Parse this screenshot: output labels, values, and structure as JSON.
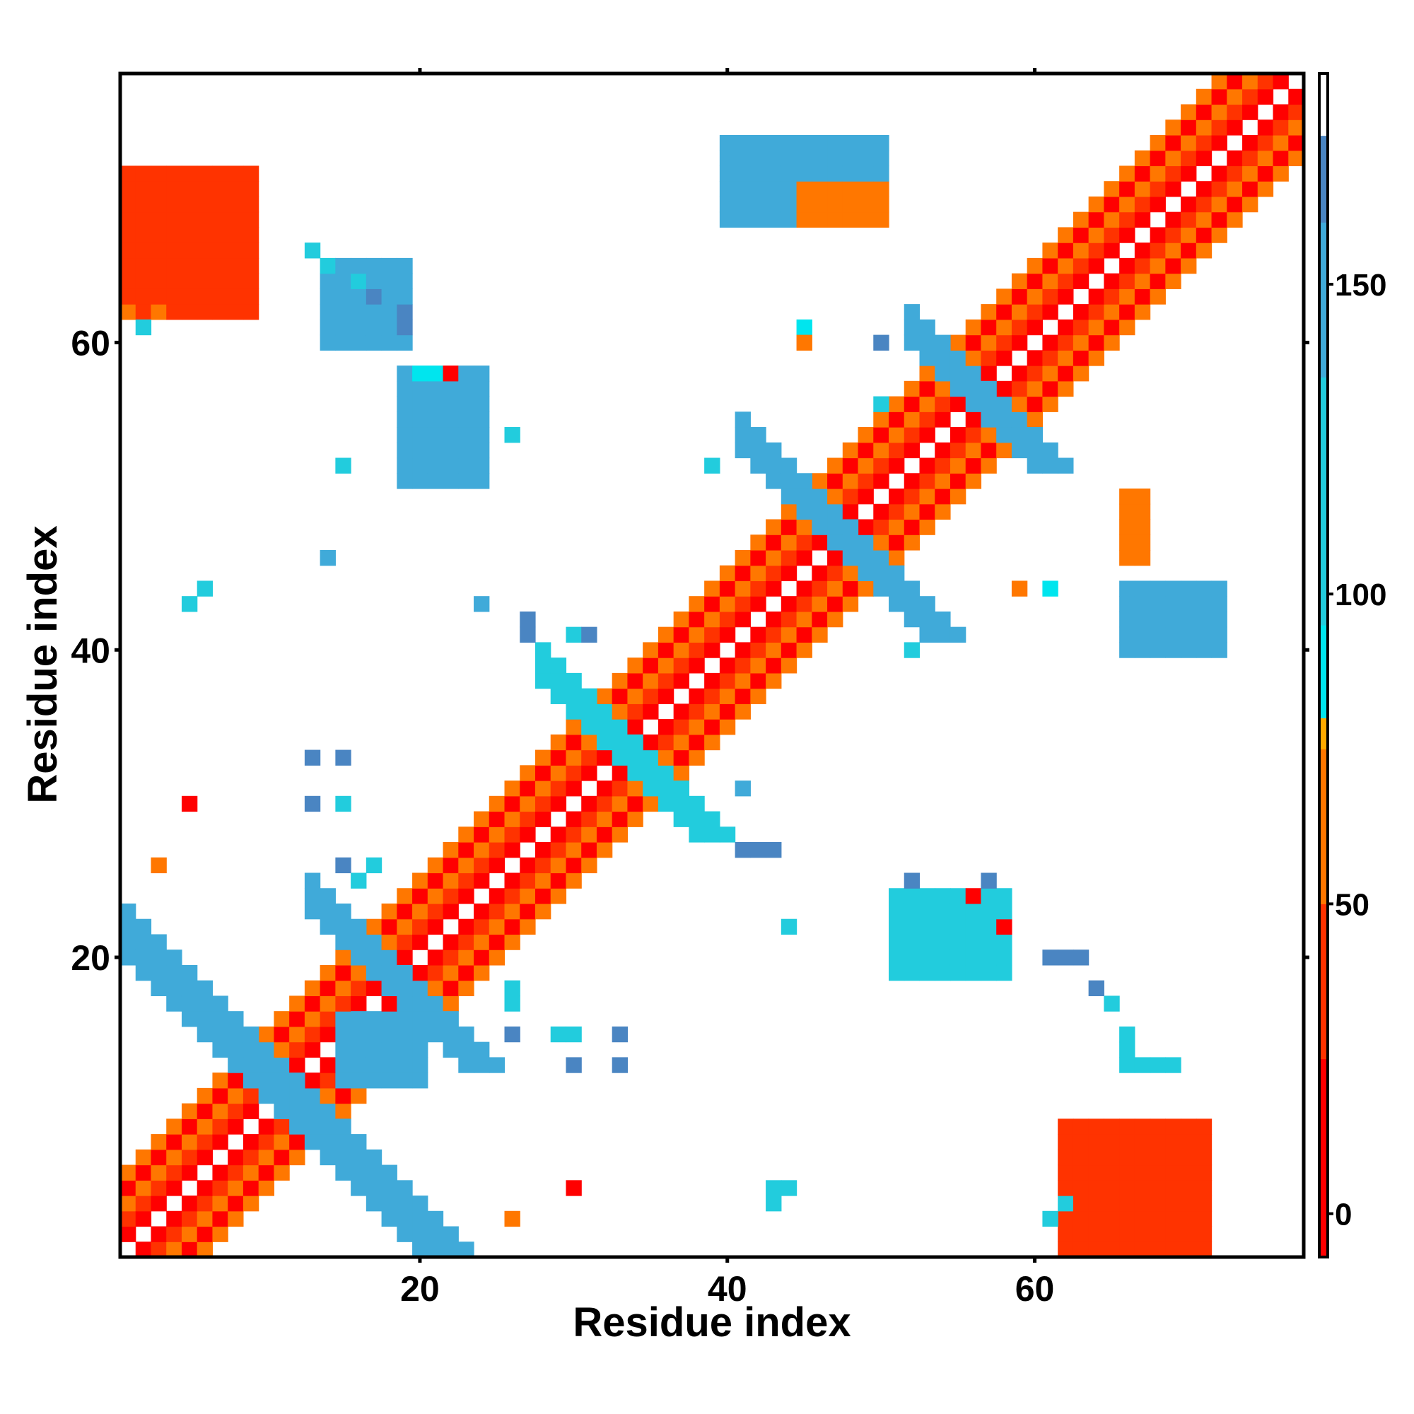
{
  "chart_data": {
    "type": "heatmap",
    "title": "",
    "xlabel": "Residue index",
    "ylabel": "Residue index",
    "xlim": [
      0.5,
      77.5
    ],
    "ylim": [
      0.5,
      77.5
    ],
    "x_ticks": [
      20,
      40,
      60
    ],
    "y_ticks": [
      20,
      40,
      60
    ],
    "colorbar": {
      "range": [
        -7,
        184
      ],
      "ticks": [
        0,
        50,
        100,
        150
      ],
      "stops": [
        {
          "from": -7,
          "to": 25,
          "color": "#ff0000"
        },
        {
          "from": 25,
          "to": 50,
          "color": "#ff3300"
        },
        {
          "from": 50,
          "to": 75,
          "color": "#ff7700"
        },
        {
          "from": 75,
          "to": 80,
          "color": "#ffaa00"
        },
        {
          "from": 80,
          "to": 95,
          "color": "#00e5ee"
        },
        {
          "from": 95,
          "to": 135,
          "color": "#22ccdd"
        },
        {
          "from": 135,
          "to": 160,
          "color": "#40aad9"
        },
        {
          "from": 160,
          "to": 174,
          "color": "#4a85c2"
        },
        {
          "from": 174,
          "to": 184,
          "color": "#ffffff"
        }
      ]
    },
    "diagonal_bands": [
      {
        "range": [
          1,
          77
        ],
        "offsets": [
          [
            1,
            8
          ],
          [
            2,
            30
          ],
          [
            3,
            60
          ],
          [
            4,
            20
          ],
          [
            5,
            55
          ]
        ]
      }
    ],
    "anti_diagonal_strips": [
      {
        "i0": 1,
        "i1": 15,
        "sum": 21,
        "width": 4,
        "value": 150
      },
      {
        "i0": 13,
        "i1": 20,
        "sum": 36,
        "width": 3,
        "value": 140
      },
      {
        "i0": 28,
        "i1": 38,
        "sum": 66,
        "width": 3,
        "value": 130
      },
      {
        "i0": 41,
        "i1": 53,
        "sum": 94,
        "width": 3,
        "value": 135
      },
      {
        "i0": 52,
        "i1": 58,
        "sum": 112,
        "width": 3,
        "value": 145
      }
    ],
    "blocks": [
      {
        "i0": 1,
        "i1": 9,
        "j0": 62,
        "j1": 71,
        "value": 45
      },
      {
        "i0": 62,
        "i1": 71,
        "j0": 1,
        "j1": 9,
        "value": 45
      },
      {
        "i0": 40,
        "i1": 50,
        "j0": 68,
        "j1": 73,
        "value": 140
      },
      {
        "i0": 45,
        "i1": 50,
        "j0": 68,
        "j1": 70,
        "value": 60
      },
      {
        "i0": 19,
        "i1": 24,
        "j0": 51,
        "j1": 58,
        "value": 150
      },
      {
        "i0": 51,
        "i1": 58,
        "j0": 19,
        "j1": 24,
        "value": 115
      },
      {
        "i0": 66,
        "i1": 72,
        "j0": 40,
        "j1": 44,
        "value": 150
      },
      {
        "i0": 66,
        "i1": 67,
        "j0": 46,
        "j1": 50,
        "value": 60
      },
      {
        "i0": 15,
        "i1": 20,
        "j0": 12,
        "j1": 16,
        "value": 155
      },
      {
        "i0": 14,
        "i1": 19,
        "j0": 60,
        "j1": 65,
        "value": 150
      }
    ],
    "cells": [
      [
        1,
        62,
        60
      ],
      [
        2,
        61,
        110
      ],
      [
        3,
        62,
        60
      ],
      [
        13,
        66,
        115
      ],
      [
        14,
        65,
        120
      ],
      [
        16,
        64,
        115
      ],
      [
        17,
        63,
        160
      ],
      [
        19,
        62,
        160
      ],
      [
        19,
        61,
        160
      ],
      [
        20,
        58,
        90
      ],
      [
        21,
        58,
        90
      ],
      [
        22,
        58,
        10
      ],
      [
        26,
        54,
        115
      ],
      [
        15,
        52,
        130
      ],
      [
        14,
        46,
        135
      ],
      [
        24,
        43,
        135
      ],
      [
        27,
        42,
        160
      ],
      [
        27,
        41,
        160
      ],
      [
        30,
        41,
        115
      ],
      [
        31,
        41,
        160
      ],
      [
        39,
        52,
        115
      ],
      [
        45,
        61,
        90
      ],
      [
        45,
        60,
        55
      ],
      [
        50,
        60,
        160
      ],
      [
        50,
        56,
        115
      ],
      [
        52,
        40,
        120
      ],
      [
        59,
        44,
        60
      ],
      [
        61,
        44,
        90
      ],
      [
        5,
        43,
        115
      ],
      [
        6,
        44,
        115
      ],
      [
        5,
        30,
        10
      ],
      [
        3,
        26,
        60
      ],
      [
        13,
        33,
        160
      ],
      [
        15,
        33,
        160
      ],
      [
        13,
        30,
        160
      ],
      [
        15,
        30,
        120
      ],
      [
        15,
        26,
        160
      ],
      [
        17,
        26,
        120
      ],
      [
        16,
        25,
        120
      ],
      [
        41,
        31,
        135
      ],
      [
        41,
        27,
        160
      ],
      [
        42,
        27,
        160
      ],
      [
        43,
        27,
        160
      ],
      [
        44,
        22,
        120
      ],
      [
        52,
        25,
        160
      ],
      [
        57,
        25,
        160
      ],
      [
        56,
        24,
        5
      ],
      [
        58,
        22,
        10
      ],
      [
        61,
        20,
        160
      ],
      [
        62,
        20,
        160
      ],
      [
        63,
        20,
        160
      ],
      [
        64,
        18,
        160
      ],
      [
        65,
        17,
        125
      ],
      [
        66,
        15,
        120
      ],
      [
        66,
        14,
        120
      ],
      [
        66,
        13,
        120
      ],
      [
        67,
        13,
        120
      ],
      [
        68,
        13,
        120
      ],
      [
        69,
        13,
        120
      ],
      [
        26,
        17,
        130
      ],
      [
        26,
        18,
        130
      ],
      [
        26,
        15,
        160
      ],
      [
        29,
        15,
        120
      ],
      [
        30,
        15,
        120
      ],
      [
        33,
        15,
        160
      ],
      [
        30,
        13,
        160
      ],
      [
        33,
        13,
        160
      ],
      [
        30,
        5,
        10
      ],
      [
        26,
        3,
        60
      ],
      [
        43,
        5,
        115
      ],
      [
        44,
        5,
        115
      ],
      [
        43,
        4,
        115
      ],
      [
        61,
        3,
        115
      ],
      [
        62,
        4,
        115
      ]
    ]
  }
}
